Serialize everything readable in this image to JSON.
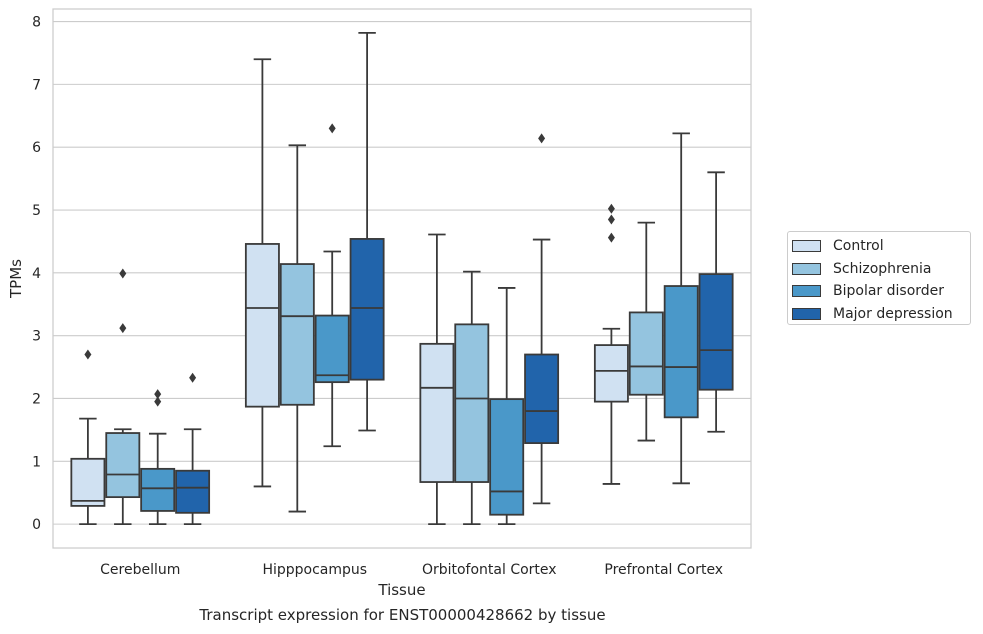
{
  "chart_data": {
    "type": "boxplot",
    "xlabel": "Tissue",
    "ylabel": "TPMs",
    "caption": "Transcript expression for ENST00000428662 by tissue",
    "ylim": [
      -0.38,
      8.2
    ],
    "yticks": [
      0,
      1,
      2,
      3,
      4,
      5,
      6,
      7,
      8
    ],
    "grid": true,
    "legend_position": "right",
    "categories": [
      "Cerebellum",
      "Hipppocampus",
      "Orbitofontal Cortex",
      "Prefrontal Cortex"
    ],
    "series": [
      {
        "name": "Control",
        "color": "#d0e1f2",
        "boxes": [
          {
            "whislo": 0.0,
            "q1": 0.29,
            "med": 0.37,
            "q3": 1.04,
            "whishi": 1.68,
            "fliers": [
              2.7
            ]
          },
          {
            "whislo": 0.6,
            "q1": 1.87,
            "med": 3.44,
            "q3": 4.46,
            "whishi": 7.4,
            "fliers": []
          },
          {
            "whislo": 0.0,
            "q1": 0.67,
            "med": 2.17,
            "q3": 2.87,
            "whishi": 4.61,
            "fliers": []
          },
          {
            "whislo": 0.64,
            "q1": 1.95,
            "med": 2.44,
            "q3": 2.85,
            "whishi": 3.11,
            "fliers": [
              4.56,
              4.85,
              5.02
            ]
          }
        ]
      },
      {
        "name": "Schizophrenia",
        "color": "#94c4df",
        "boxes": [
          {
            "whislo": 0.0,
            "q1": 0.43,
            "med": 0.79,
            "q3": 1.45,
            "whishi": 1.51,
            "fliers": [
              3.12,
              3.99
            ]
          },
          {
            "whislo": 0.2,
            "q1": 1.9,
            "med": 3.31,
            "q3": 4.14,
            "whishi": 6.03,
            "fliers": []
          },
          {
            "whislo": 0.0,
            "q1": 0.67,
            "med": 2.0,
            "q3": 3.18,
            "whishi": 4.02,
            "fliers": []
          },
          {
            "whislo": 1.33,
            "q1": 2.06,
            "med": 2.51,
            "q3": 3.37,
            "whishi": 4.8,
            "fliers": []
          }
        ]
      },
      {
        "name": "Bipolar disorder",
        "color": "#4a98c9",
        "boxes": [
          {
            "whislo": 0.0,
            "q1": 0.21,
            "med": 0.57,
            "q3": 0.88,
            "whishi": 1.44,
            "fliers": [
              1.95,
              2.07
            ]
          },
          {
            "whislo": 1.24,
            "q1": 2.26,
            "med": 2.37,
            "q3": 3.32,
            "whishi": 4.34,
            "fliers": [
              6.3
            ]
          },
          {
            "whislo": 0.0,
            "q1": 0.15,
            "med": 0.52,
            "q3": 1.99,
            "whishi": 3.76,
            "fliers": []
          },
          {
            "whislo": 0.65,
            "q1": 1.7,
            "med": 2.5,
            "q3": 3.79,
            "whishi": 6.22,
            "fliers": []
          }
        ]
      },
      {
        "name": "Major depression",
        "color": "#2164ab",
        "boxes": [
          {
            "whislo": 0.0,
            "q1": 0.18,
            "med": 0.58,
            "q3": 0.85,
            "whishi": 1.51,
            "fliers": [
              2.33
            ]
          },
          {
            "whislo": 1.49,
            "q1": 2.3,
            "med": 3.44,
            "q3": 4.54,
            "whishi": 7.82,
            "fliers": []
          },
          {
            "whislo": 0.33,
            "q1": 1.29,
            "med": 1.8,
            "q3": 2.7,
            "whishi": 4.53,
            "fliers": [
              6.14
            ]
          },
          {
            "whislo": 1.47,
            "q1": 2.14,
            "med": 2.77,
            "q3": 3.98,
            "whishi": 5.6,
            "fliers": []
          }
        ]
      }
    ]
  }
}
